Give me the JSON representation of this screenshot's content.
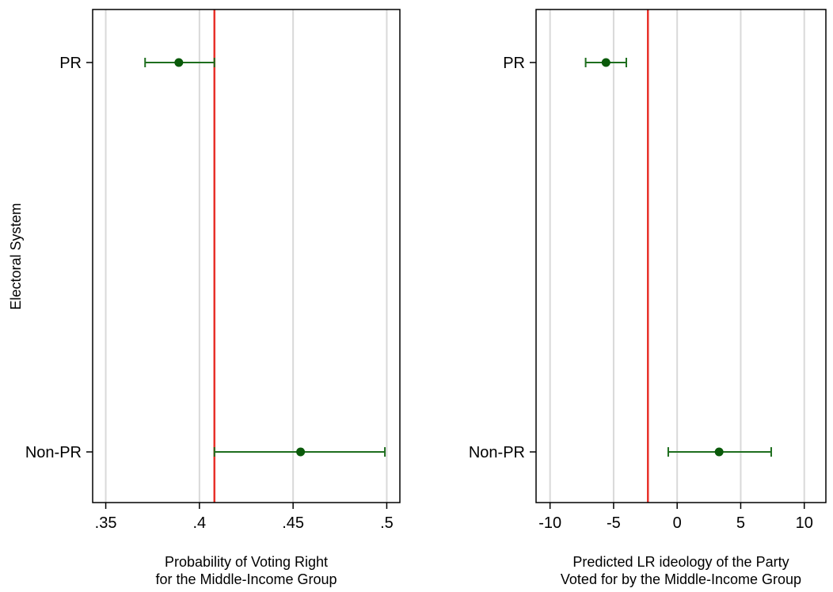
{
  "figure": {
    "y_axis_label": "Electoral System",
    "colors": {
      "point": "#0a5a0a",
      "errorbar": "#1e6e1e",
      "reference_line": "#e8312a",
      "grid": "#d9d9d9",
      "frame": "#000000"
    }
  },
  "chart_data": [
    {
      "type": "scatter",
      "categories": [
        "PR",
        "Non-PR"
      ],
      "xlabel_lines": [
        "Probability of Voting Right",
        "for the Middle-Income Group"
      ],
      "xlim": [
        0.343,
        0.507
      ],
      "xticks": [
        0.35,
        0.4,
        0.45,
        0.5
      ],
      "xtick_labels": [
        ".35",
        ".4",
        ".45",
        ".5"
      ],
      "grid": "vertical at ticks",
      "reference_line": 0.408,
      "points": [
        {
          "category": "PR",
          "estimate": 0.389,
          "ci_low": 0.371,
          "ci_high": 0.408
        },
        {
          "category": "Non-PR",
          "estimate": 0.454,
          "ci_low": 0.408,
          "ci_high": 0.499
        }
      ]
    },
    {
      "type": "scatter",
      "categories": [
        "PR",
        "Non-PR"
      ],
      "xlabel_lines": [
        "Predicted LR ideology of the Party",
        "Voted for by the Middle-Income Group"
      ],
      "xlim": [
        -11.1,
        11.7
      ],
      "xticks": [
        -10,
        -5,
        0,
        5,
        10
      ],
      "xtick_labels": [
        "-10",
        "-5",
        "0",
        "5",
        "10"
      ],
      "grid": "vertical at ticks",
      "reference_line": -2.3,
      "points": [
        {
          "category": "PR",
          "estimate": -5.6,
          "ci_low": -7.2,
          "ci_high": -4.0
        },
        {
          "category": "Non-PR",
          "estimate": 3.3,
          "ci_low": -0.7,
          "ci_high": 7.4
        }
      ]
    }
  ]
}
